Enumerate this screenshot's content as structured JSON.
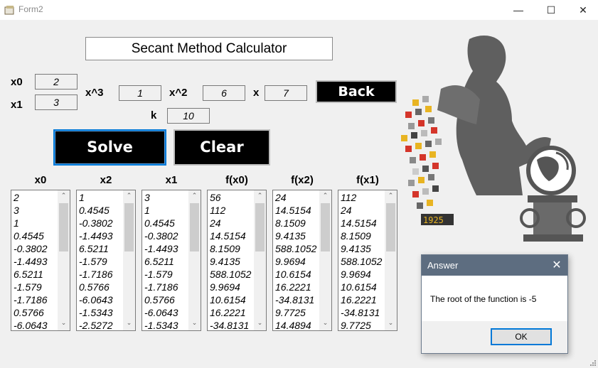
{
  "window": {
    "title": "Form2",
    "minimize_icon": "minimize-icon",
    "maximize_icon": "maximize-icon",
    "close_icon": "close-icon"
  },
  "heading": "Secant Method Calculator",
  "inputs": {
    "x0": {
      "label": "x0",
      "value": "2"
    },
    "x1": {
      "label": "x1",
      "value": "3"
    },
    "x3": {
      "label": "x^3",
      "value": "1"
    },
    "x2": {
      "label": "x^2",
      "value": "6"
    },
    "x": {
      "label": "x",
      "value": "7"
    },
    "k": {
      "label": "k",
      "value": "10"
    }
  },
  "buttons": {
    "back": "Back",
    "solve": "Solve",
    "clear": "Clear"
  },
  "columns": [
    {
      "header": "x0",
      "items": [
        "2",
        "3",
        "1",
        "0.4545",
        "-0.3802",
        "-1.4493",
        "6.5211",
        "-1.579",
        "-1.7186",
        "0.5766",
        "-6.0643"
      ]
    },
    {
      "header": "x2",
      "items": [
        "1",
        "0.4545",
        "-0.3802",
        "-1.4493",
        "6.5211",
        "-1.579",
        "-1.7186",
        "0.5766",
        "-6.0643",
        "-1.5343",
        "-2.5272"
      ]
    },
    {
      "header": "x1",
      "items": [
        "3",
        "1",
        "0.4545",
        "-0.3802",
        "-1.4493",
        "6.5211",
        "-1.579",
        "-1.7186",
        "0.5766",
        "-6.0643",
        "-1.5343"
      ]
    },
    {
      "header": "f(x0)",
      "items": [
        "56",
        "112",
        "24",
        "14.5154",
        "8.1509",
        "9.4135",
        "588.1052",
        "9.9694",
        "10.6154",
        "16.2221",
        "-34.8131"
      ]
    },
    {
      "header": "f(x2)",
      "items": [
        "24",
        "14.5154",
        "8.1509",
        "9.4135",
        "588.1052",
        "9.9694",
        "10.6154",
        "16.2221",
        "-34.8131",
        "9.7725",
        "14.4894"
      ]
    },
    {
      "header": "f(x1)",
      "items": [
        "112",
        "24",
        "14.5154",
        "8.1509",
        "9.4135",
        "588.1052",
        "9.9694",
        "10.6154",
        "16.2221",
        "-34.8131",
        "9.7725"
      ]
    }
  ],
  "illustration": {
    "badge": "1925"
  },
  "dialog": {
    "title": "Answer",
    "message": "The root of the function is -5",
    "ok": "OK",
    "close_icon": "close-icon"
  }
}
